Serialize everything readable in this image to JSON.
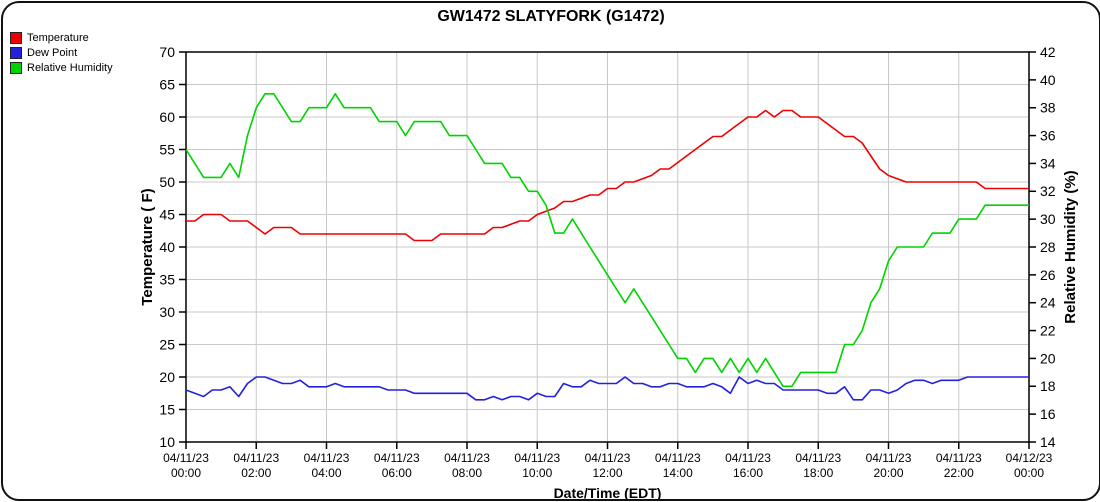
{
  "window": {
    "title": "GW1472 SLATYFORK (G1472)"
  },
  "legend": {
    "items": [
      {
        "label": "Temperature",
        "color": "#ee0000"
      },
      {
        "label": "Dew Point",
        "color": "#2222dd"
      },
      {
        "label": "Relative Humidity",
        "color": "#00d400"
      }
    ]
  },
  "chart_data": {
    "type": "line",
    "title": "GW1472 SLATYFORK (G1472)",
    "xlabel": "Date/Time (EDT)",
    "ylabel_left": "Temperature ( F)",
    "ylabel_right": "Relative Humidity (%)",
    "grid": true,
    "legend_position": "top-left",
    "x_start_hour": 0,
    "x_interval_minutes": 15,
    "x_axis_ticks": [
      {
        "hour": 0,
        "date": "04/11/23",
        "time": "00:00"
      },
      {
        "hour": 2,
        "date": "04/11/23",
        "time": "02:00"
      },
      {
        "hour": 4,
        "date": "04/11/23",
        "time": "04:00"
      },
      {
        "hour": 6,
        "date": "04/11/23",
        "time": "06:00"
      },
      {
        "hour": 8,
        "date": "04/11/23",
        "time": "08:00"
      },
      {
        "hour": 10,
        "date": "04/11/23",
        "time": "10:00"
      },
      {
        "hour": 12,
        "date": "04/11/23",
        "time": "12:00"
      },
      {
        "hour": 14,
        "date": "04/11/23",
        "time": "14:00"
      },
      {
        "hour": 16,
        "date": "04/11/23",
        "time": "16:00"
      },
      {
        "hour": 18,
        "date": "04/11/23",
        "time": "18:00"
      },
      {
        "hour": 20,
        "date": "04/11/23",
        "time": "20:00"
      },
      {
        "hour": 22,
        "date": "04/11/23",
        "time": "22:00"
      },
      {
        "hour": 24,
        "date": "04/12/23",
        "time": "00:00"
      }
    ],
    "y_left": {
      "label": "Temperature ( F)",
      "min": 10,
      "max": 70,
      "step": 5
    },
    "y_right": {
      "label": "Relative Humidity (%)",
      "min": 14,
      "max": 42,
      "step": 2
    },
    "series": [
      {
        "name": "Temperature",
        "unit": "F",
        "axis": "left",
        "color": "#ee0000",
        "values": [
          44,
          44,
          45,
          45,
          45,
          44,
          44,
          44,
          43,
          42,
          43,
          43,
          43,
          42,
          42,
          42,
          42,
          42,
          42,
          42,
          42,
          42,
          42,
          42,
          42,
          42,
          41,
          41,
          41,
          42,
          42,
          42,
          42,
          42,
          42,
          43,
          43,
          43.5,
          44,
          44,
          45,
          45.5,
          46,
          47,
          47,
          47.5,
          48,
          48,
          49,
          49,
          50,
          50,
          50.5,
          51,
          52,
          52,
          53,
          54,
          55,
          56,
          57,
          57,
          58,
          59,
          60,
          60,
          61,
          60,
          61,
          61,
          60,
          60,
          60,
          59,
          58,
          57,
          57,
          56,
          54,
          52,
          51,
          50.5,
          50,
          50,
          50,
          50,
          50,
          50,
          50,
          50,
          50,
          49,
          49,
          49,
          49,
          49,
          49
        ]
      },
      {
        "name": "Dew Point",
        "unit": "F",
        "axis": "left",
        "color": "#2222dd",
        "values": [
          18,
          17.5,
          17,
          18,
          18,
          18.5,
          17,
          19,
          20,
          20,
          19.5,
          19,
          19,
          19.5,
          18.5,
          18.5,
          18.5,
          19,
          18.5,
          18.5,
          18.5,
          18.5,
          18.5,
          18,
          18,
          18,
          17.5,
          17.5,
          17.5,
          17.5,
          17.5,
          17.5,
          17.5,
          16.5,
          16.5,
          17,
          16.5,
          17,
          17,
          16.5,
          17.5,
          17,
          17,
          19,
          18.5,
          18.5,
          19.5,
          19,
          19,
          19,
          20,
          19,
          19,
          18.5,
          18.5,
          19,
          19,
          18.5,
          18.5,
          18.5,
          19,
          18.5,
          17.5,
          20,
          19,
          19.5,
          19,
          19,
          18,
          18,
          18,
          18,
          18,
          17.5,
          17.5,
          18.5,
          16.5,
          16.5,
          18,
          18,
          17.5,
          18,
          19,
          19.5,
          19.5,
          19,
          19.5,
          19.5,
          19.5,
          20,
          20,
          20,
          20,
          20,
          20,
          20,
          20
        ]
      },
      {
        "name": "Relative Humidity",
        "unit": "%",
        "axis": "right",
        "color": "#00d400",
        "values": [
          35,
          34,
          33,
          33,
          33,
          34,
          33,
          36,
          38,
          39,
          39,
          38,
          37,
          37,
          38,
          38,
          38,
          39,
          38,
          38,
          38,
          38,
          37,
          37,
          37,
          36,
          37,
          37,
          37,
          37,
          36,
          36,
          36,
          35,
          34,
          34,
          34,
          33,
          33,
          32,
          32,
          31,
          29,
          29,
          30,
          29,
          28,
          27,
          26,
          25,
          24,
          25,
          24,
          23,
          22,
          21,
          20,
          20,
          19,
          20,
          20,
          19,
          20,
          19,
          20,
          19,
          20,
          19,
          18,
          18,
          19,
          19,
          19,
          19,
          19,
          21,
          21,
          22,
          24,
          25,
          27,
          28,
          28,
          28,
          28,
          29,
          29,
          29,
          30,
          30,
          30,
          31,
          31,
          31,
          31,
          31,
          31
        ]
      }
    ]
  }
}
